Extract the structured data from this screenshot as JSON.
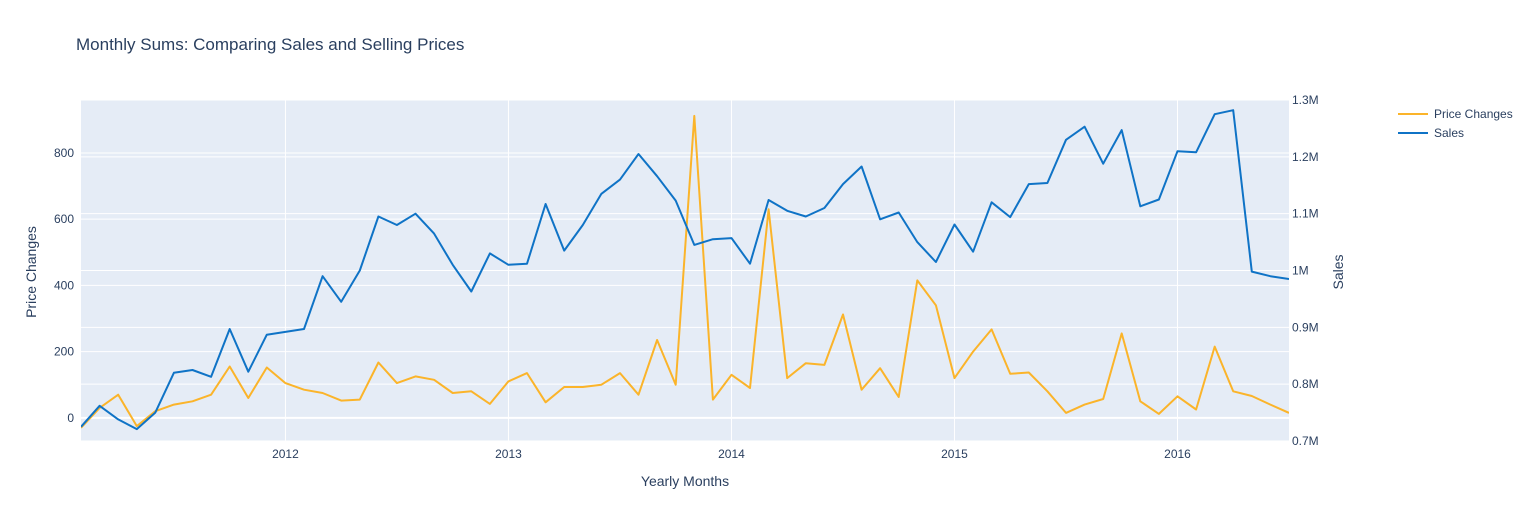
{
  "chart_data": {
    "type": "line",
    "title": "Monthly Sums: Comparing Sales and Selling Prices",
    "xlabel": "Yearly Months",
    "ylabel_left": "Price Changes",
    "ylabel_right": "Sales",
    "x_ticks": [
      "2012",
      "2013",
      "2014",
      "2015",
      "2016"
    ],
    "y_left_ticks": [
      "0",
      "200",
      "400",
      "600",
      "800"
    ],
    "y_right_ticks": [
      "0.7M",
      "0.8M",
      "0.9M",
      "1M",
      "1.1M",
      "1.2M",
      "1.3M"
    ],
    "xlim": [
      "2011-02",
      "2016-07"
    ],
    "ylim_left": [
      -70,
      960
    ],
    "ylim_right": [
      700000,
      1300000
    ],
    "legend_position": "top-right",
    "grid": true,
    "x": [
      "2011-02",
      "2011-03",
      "2011-04",
      "2011-05",
      "2011-06",
      "2011-07",
      "2011-08",
      "2011-09",
      "2011-10",
      "2011-11",
      "2011-12",
      "2012-01",
      "2012-02",
      "2012-03",
      "2012-04",
      "2012-05",
      "2012-06",
      "2012-07",
      "2012-08",
      "2012-09",
      "2012-10",
      "2012-11",
      "2012-12",
      "2013-01",
      "2013-02",
      "2013-03",
      "2013-04",
      "2013-05",
      "2013-06",
      "2013-07",
      "2013-08",
      "2013-09",
      "2013-10",
      "2013-11",
      "2013-12",
      "2014-01",
      "2014-02",
      "2014-03",
      "2014-04",
      "2014-05",
      "2014-06",
      "2014-07",
      "2014-08",
      "2014-09",
      "2014-10",
      "2014-11",
      "2014-12",
      "2015-01",
      "2015-02",
      "2015-03",
      "2015-04",
      "2015-05",
      "2015-06",
      "2015-07",
      "2015-08",
      "2015-09",
      "2015-10",
      "2015-11",
      "2015-12",
      "2016-01",
      "2016-02",
      "2016-03",
      "2016-04",
      "2016-05",
      "2016-06",
      "2016-07"
    ],
    "series": [
      {
        "name": "Price Changes",
        "axis": "left",
        "color": "#fbb42a",
        "values": [
          -30,
          30,
          70,
          -25,
          20,
          40,
          50,
          70,
          155,
          60,
          152,
          105,
          85,
          75,
          52,
          55,
          167,
          105,
          125,
          115,
          75,
          80,
          42,
          110,
          135,
          47,
          93,
          93,
          100,
          135,
          70,
          235,
          100,
          912,
          55,
          130,
          90,
          630,
          120,
          165,
          160,
          312,
          85,
          150,
          63,
          415,
          340,
          120,
          200,
          267,
          133,
          137,
          80,
          15,
          40,
          57,
          255,
          50,
          12,
          65,
          25,
          215,
          80,
          66,
          40,
          15
        ]
      },
      {
        "name": "Sales",
        "axis": "right",
        "color": "#0f73c6",
        "values": [
          725000,
          762000,
          738000,
          721000,
          750000,
          820000,
          825000,
          813000,
          897000,
          822000,
          887000,
          892000,
          897000,
          990000,
          945000,
          1000000,
          1095000,
          1080000,
          1100000,
          1065000,
          1010000,
          963000,
          1030000,
          1010000,
          1012000,
          1117000,
          1035000,
          1080000,
          1135000,
          1160000,
          1205000,
          1166000,
          1123000,
          1045000,
          1055000,
          1057000,
          1012000,
          1124000,
          1105000,
          1095000,
          1110000,
          1152000,
          1183000,
          1090000,
          1102000,
          1050000,
          1015000,
          1081000,
          1033000,
          1120000,
          1094000,
          1152000,
          1154000,
          1230000,
          1253000,
          1188000,
          1247000,
          1113000,
          1125000,
          1210000,
          1208000,
          1275000,
          1282000,
          998000,
          990000,
          985000
        ]
      }
    ]
  }
}
